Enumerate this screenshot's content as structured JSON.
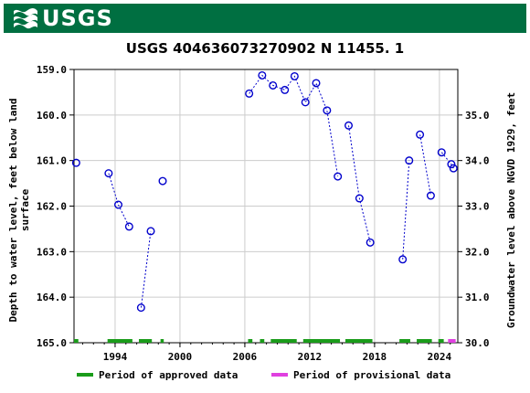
{
  "header": {
    "logo_text": "USGS",
    "brand_color": "#006f41"
  },
  "chart_data": {
    "type": "scatter",
    "title": "USGS 404636073270902 N 11455. 1",
    "ylabel_left": "Depth to water level, feet below land surface",
    "ylabel_left_lines": [
      "Depth to water level, feet below land",
      "surface"
    ],
    "ylabel_right": "Groundwater level above NGVD 1929, feet",
    "left_axis": {
      "min": 159.0,
      "max": 165.0,
      "inverted": true,
      "ticks": [
        "159.0",
        "160.0",
        "161.0",
        "162.0",
        "163.0",
        "164.0",
        "165.0"
      ]
    },
    "right_axis": {
      "ticks": [
        "35.0",
        "34.0",
        "33.0",
        "32.0",
        "31.0",
        "30.0"
      ],
      "offset": 195.0
    },
    "x_axis": {
      "min": 1990.2,
      "max": 2025.7,
      "ticks": [
        "1994",
        "2000",
        "2006",
        "2012",
        "2018",
        "2024"
      ]
    },
    "grid": true,
    "series": [
      {
        "name": "",
        "color": "#0000cc",
        "segments": [
          [
            [
              1990.4,
              161.05
            ]
          ],
          [
            [
              1993.4,
              161.28
            ],
            [
              1994.3,
              161.97
            ],
            [
              1995.3,
              162.45
            ]
          ],
          [
            [
              1996.4,
              164.23
            ],
            [
              1997.3,
              162.55
            ]
          ],
          [
            [
              1998.4,
              161.45
            ]
          ],
          [
            [
              2006.4,
              159.53
            ],
            [
              2007.6,
              159.13
            ],
            [
              2008.6,
              159.35
            ],
            [
              2009.7,
              159.45
            ],
            [
              2010.6,
              159.15
            ],
            [
              2011.6,
              159.72
            ],
            [
              2012.6,
              159.3
            ],
            [
              2013.6,
              159.9
            ],
            [
              2014.6,
              161.35
            ]
          ],
          [
            [
              2015.6,
              160.23
            ],
            [
              2016.6,
              161.83
            ],
            [
              2017.6,
              162.8
            ]
          ],
          [
            [
              2020.6,
              163.17
            ],
            [
              2021.2,
              161.0
            ]
          ],
          [
            [
              2022.2,
              160.43
            ],
            [
              2023.2,
              161.77
            ]
          ],
          [
            [
              2024.2,
              160.82
            ],
            [
              2025.1,
              161.08
            ],
            [
              2025.3,
              161.17
            ]
          ]
        ]
      }
    ],
    "approved_periods": [
      [
        1990.2,
        1990.6
      ],
      [
        1993.3,
        1995.6
      ],
      [
        1996.2,
        1997.4
      ],
      [
        1998.2,
        1998.5
      ],
      [
        2006.3,
        2006.7
      ],
      [
        2007.4,
        2007.8
      ],
      [
        2008.4,
        2010.8
      ],
      [
        2011.4,
        2014.8
      ],
      [
        2015.3,
        2017.8
      ],
      [
        2020.3,
        2021.3
      ],
      [
        2021.9,
        2023.3
      ],
      [
        2023.9,
        2024.4
      ]
    ],
    "provisional_periods": [
      [
        2024.8,
        2025.5
      ]
    ],
    "approved_color": "#1a9c1a",
    "provisional_color": "#e040e0",
    "legend": {
      "approved_label": "Period of approved data",
      "provisional_label": "Period of provisional data",
      "placement": "bottom"
    }
  }
}
